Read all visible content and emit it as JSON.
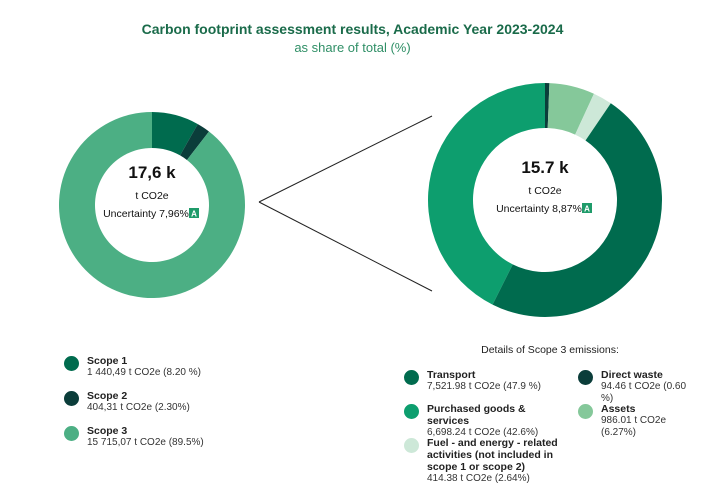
{
  "title": "Carbon footprint assessment results, Academic Year 2023-2024",
  "subtitle": "as share of total (%)",
  "chart_data": [
    {
      "type": "pie",
      "center_value": "17,6 k",
      "center_unit": "t CO2e",
      "uncertainty": "Uncertainty 7,96%",
      "badge": "A",
      "categories": [
        "Scope 1",
        "Scope 2",
        "Scope 3"
      ],
      "values": [
        8.2,
        2.3,
        89.5
      ],
      "value_labels": [
        "1 440,49 t CO2e (8.20 %)",
        "404,31 t CO2e (2.30%)",
        "15 715,07 t CO2e (89.5%)"
      ],
      "colors": [
        "#006b4e",
        "#0b3d3a",
        "#4caf84"
      ]
    },
    {
      "type": "pie",
      "center_value": "15.7 k",
      "center_unit": "t CO2e",
      "uncertainty": "Uncertainty 8,87%",
      "badge": "A",
      "legend_title": "Details of Scope 3 emissions:",
      "categories": [
        "Direct waste",
        "Assets",
        "Fuel - and energy - related activities (not included in scope 1 or scope 2)",
        "Transport",
        "Purchased goods & services"
      ],
      "values": [
        0.6,
        6.27,
        2.64,
        47.9,
        42.6
      ],
      "value_labels": [
        "94.46 t CO2e (0.60 %)",
        "986.01 t CO2e (6.27%)",
        "414.38 t CO2e (2.64%)",
        "7,521.98 t CO2e (47.9 %)",
        "6,698.24 t CO2e (42.6%)"
      ],
      "colors": [
        "#0b3d3a",
        "#85c89a",
        "#cde8d8",
        "#006b4e",
        "#0d9e6e"
      ]
    }
  ]
}
